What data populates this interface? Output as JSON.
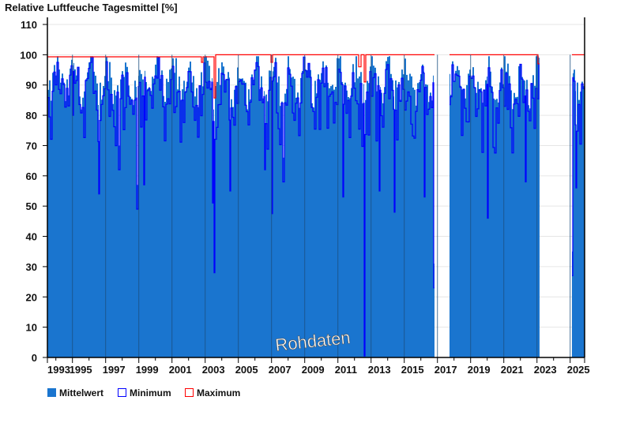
{
  "chart_data": {
    "type": "area",
    "title": "Relative Luftfeuche Tagesmittel [%]",
    "xlabel": "",
    "ylabel": "",
    "xlim": [
      1993.49,
      2025.87
    ],
    "ylim": [
      0,
      110
    ],
    "yticks": [
      0,
      10,
      20,
      30,
      40,
      50,
      60,
      70,
      80,
      90,
      100,
      110
    ],
    "xticks": [
      {
        "v": 1993.49,
        "label": "1993"
      },
      {
        "v": 1995,
        "label": "1995"
      },
      {
        "v": 1997,
        "label": "1997"
      },
      {
        "v": 1999,
        "label": "1999"
      },
      {
        "v": 2001,
        "label": "2001"
      },
      {
        "v": 2003,
        "label": "2003"
      },
      {
        "v": 2005,
        "label": "2005"
      },
      {
        "v": 2007,
        "label": "2007"
      },
      {
        "v": 2009,
        "label": "2009"
      },
      {
        "v": 2011,
        "label": "2011"
      },
      {
        "v": 2013,
        "label": "2013"
      },
      {
        "v": 2015,
        "label": "2015"
      },
      {
        "v": 2017,
        "label": "2017"
      },
      {
        "v": 2019,
        "label": "2019"
      },
      {
        "v": 2021,
        "label": "2021"
      },
      {
        "v": 2023,
        "label": "2023"
      },
      {
        "v": 2025,
        "label": "2025"
      }
    ],
    "grid": true,
    "legend_position": "bottom-left",
    "annotation": "Rohdaten",
    "data_segments": [
      [
        1993.49,
        2016.8
      ],
      [
        2017.73,
        2023.16
      ],
      [
        2025.1,
        2025.87
      ]
    ],
    "series": [
      {
        "name": "Mittelwert",
        "color": "#1a75cf",
        "typical_range": [
          82,
          99.5
        ]
      },
      {
        "name": "Minimum",
        "color": "#0000ff",
        "typical_range": [
          65,
          99.5
        ],
        "notable_lows": [
          [
            1995.0,
            80
          ],
          [
            1996.6,
            54
          ],
          [
            1997.8,
            62
          ],
          [
            1998.9,
            49
          ],
          [
            1999.3,
            57
          ],
          [
            2003.45,
            51
          ],
          [
            2003.55,
            28
          ],
          [
            2004.5,
            55
          ],
          [
            2006.6,
            62
          ],
          [
            2007.0,
            47.5
          ],
          [
            2007.7,
            58
          ],
          [
            2011.3,
            53
          ],
          [
            2012.6,
            0.5
          ],
          [
            2013.5,
            55
          ],
          [
            2014.4,
            48
          ],
          [
            2016.2,
            53
          ],
          [
            2016.78,
            23
          ],
          [
            2020.0,
            46
          ],
          [
            2022.3,
            58
          ],
          [
            2025.12,
            27
          ],
          [
            2025.35,
            56
          ]
        ]
      },
      {
        "name": "Maximum",
        "color": "#ff0000",
        "typical_range": [
          99.3,
          100
        ],
        "notable_lows": [
          [
            2002.8,
            97.5
          ],
          [
            2003.55,
            85.7
          ],
          [
            2007.0,
            97.5
          ],
          [
            2012.3,
            96
          ],
          [
            2012.6,
            91
          ],
          [
            2023.1,
            97
          ]
        ]
      }
    ]
  }
}
